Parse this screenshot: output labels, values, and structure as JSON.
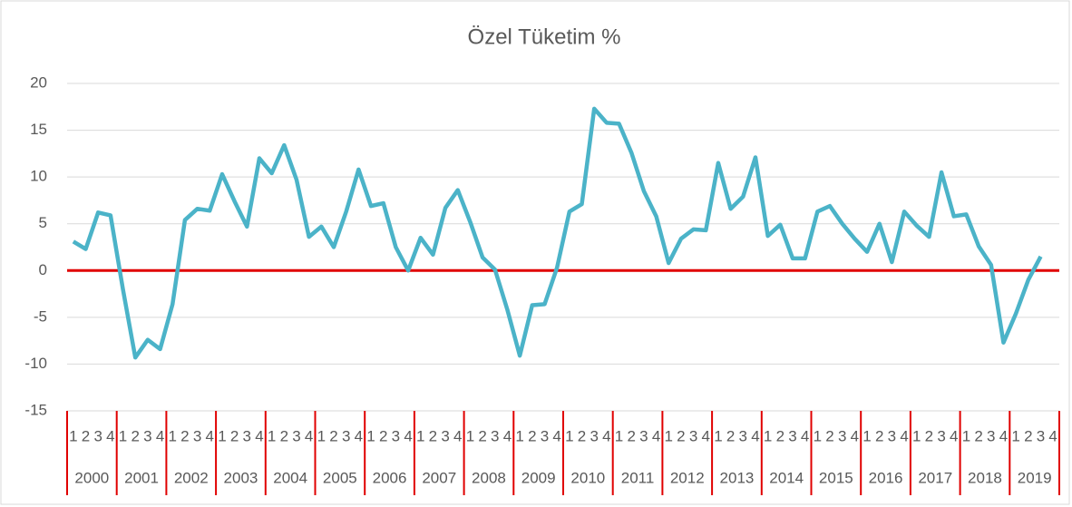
{
  "chart_data": {
    "type": "line",
    "title": "Özel Tüketim %",
    "categories": [
      "1",
      "2",
      "3",
      "4",
      "1",
      "2",
      "3",
      "4",
      "1",
      "2",
      "3",
      "4",
      "1",
      "2",
      "3",
      "4",
      "1",
      "2",
      "3",
      "4",
      "1",
      "2",
      "3",
      "4",
      "1",
      "2",
      "3",
      "4",
      "1",
      "2",
      "3",
      "4",
      "1",
      "2",
      "3",
      "4",
      "1",
      "2",
      "3",
      "4",
      "1",
      "2",
      "3",
      "4",
      "1",
      "2",
      "3",
      "4",
      "1",
      "2",
      "3",
      "4",
      "1",
      "2",
      "3",
      "4",
      "1",
      "2",
      "3",
      "4",
      "1",
      "2",
      "3",
      "4",
      "1",
      "2",
      "3",
      "4",
      "1",
      "2",
      "3",
      "4",
      "1",
      "2",
      "3",
      "4",
      "1",
      "2",
      "3",
      "4"
    ],
    "years": [
      "2000",
      "2001",
      "2002",
      "2003",
      "2004",
      "2005",
      "2006",
      "2007",
      "2008",
      "2009",
      "2010",
      "2011",
      "2012",
      "2013",
      "2014",
      "2015",
      "2016",
      "2017",
      "2018",
      "2019"
    ],
    "series": [
      {
        "name": "Özel Tüketim",
        "color": "#4bb3c8",
        "values": [
          3.1,
          2.3,
          6.2,
          5.9,
          -2.0,
          -9.3,
          -7.4,
          -8.4,
          -3.6,
          5.4,
          6.6,
          6.4,
          10.3,
          7.4,
          4.7,
          12.0,
          10.4,
          13.4,
          9.7,
          3.6,
          4.7,
          2.5,
          6.3,
          10.8,
          6.9,
          7.2,
          2.5,
          0.0,
          3.5,
          1.7,
          6.7,
          8.6,
          5.2,
          1.4,
          0.1,
          -4.2,
          -9.1,
          -3.7,
          -3.6,
          0.3,
          6.3,
          7.1,
          17.3,
          15.8,
          15.7,
          12.6,
          8.5,
          5.8,
          0.8,
          3.4,
          4.4,
          4.3,
          11.5,
          6.6,
          7.9,
          12.1,
          3.7,
          4.9,
          1.3,
          1.3,
          6.3,
          6.9,
          5.0,
          3.4,
          2.0,
          5.0,
          0.9,
          6.3,
          4.8,
          3.6,
          10.5,
          5.8,
          6.0,
          2.6,
          0.6,
          -7.7,
          -4.6,
          -1.0,
          1.5,
          null
        ]
      }
    ],
    "ylim": [
      -15,
      20
    ],
    "yticks": [
      -15,
      -10,
      -5,
      0,
      5,
      10,
      15,
      20
    ],
    "grid": true,
    "axis_color": "#e00000"
  }
}
